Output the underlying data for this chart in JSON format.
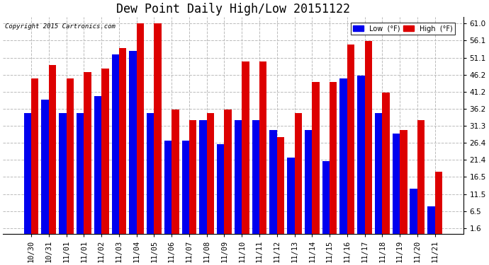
{
  "title": "Dew Point Daily High/Low 20151122",
  "copyright": "Copyright 2015 Cartronics.com",
  "categories": [
    "10/30",
    "10/31",
    "11/01",
    "11/01",
    "11/02",
    "11/03",
    "11/04",
    "11/05",
    "11/06",
    "11/07",
    "11/08",
    "11/09",
    "11/10",
    "11/11",
    "11/12",
    "11/13",
    "11/14",
    "11/15",
    "11/16",
    "11/17",
    "11/18",
    "11/19",
    "11/20",
    "11/21"
  ],
  "low_values": [
    35,
    39,
    35,
    35,
    40,
    52,
    53,
    35,
    27,
    27,
    33,
    26,
    33,
    33,
    30,
    22,
    30,
    21,
    45,
    46,
    35,
    29,
    13,
    8
  ],
  "high_values": [
    45,
    49,
    45,
    47,
    48,
    54,
    61,
    61,
    36,
    33,
    35,
    36,
    50,
    50,
    28,
    35,
    44,
    44,
    55,
    56,
    41,
    30,
    33,
    18
  ],
  "low_color": "#0000ee",
  "high_color": "#dd0000",
  "bg_color": "#ffffff",
  "grid_color": "#bbbbbb",
  "yticks": [
    1.6,
    6.5,
    11.5,
    16.5,
    21.4,
    26.4,
    31.3,
    36.2,
    41.2,
    46.2,
    51.1,
    56.1,
    61.0
  ],
  "ylim": [
    0,
    63
  ],
  "title_fontsize": 12,
  "tick_fontsize": 7.5,
  "legend_label_low": "Low  (°F)",
  "legend_label_high": "High  (°F)"
}
